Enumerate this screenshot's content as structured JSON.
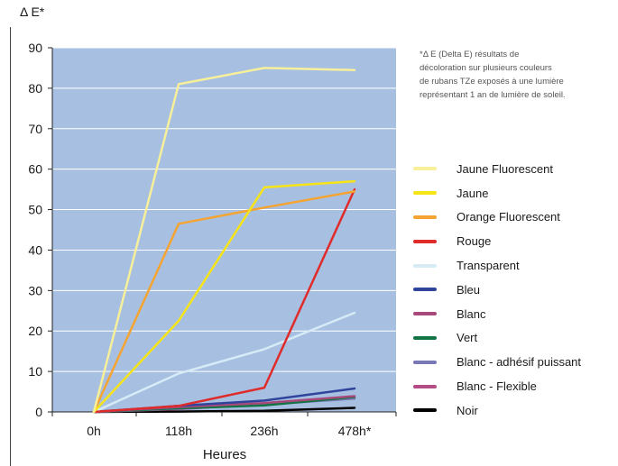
{
  "chart_data": {
    "type": "line",
    "ylabel": "Δ E*",
    "xlabel": "Heures",
    "categories": [
      "0h",
      "118h",
      "236h",
      "478h*"
    ],
    "ylim": [
      0,
      90
    ],
    "yticks": [
      0,
      10,
      20,
      30,
      40,
      50,
      60,
      70,
      80,
      90
    ],
    "plot_background": "#a7c0e2",
    "grid": true,
    "legend_position": "right",
    "footnote_lines": [
      "*Δ E (Delta E) résultats de",
      "décoloration sur plusieurs couleurs",
      "de rubans TZe exposés à une lumière",
      "représentant 1 an de lumière de soleil."
    ],
    "series": [
      {
        "name": "Jaune Fluorescent",
        "color": "#f7ef9a",
        "values": [
          0,
          81,
          85,
          84.5
        ]
      },
      {
        "name": "Jaune",
        "color": "#f7e417",
        "values": [
          0,
          22.5,
          55.5,
          57
        ]
      },
      {
        "name": "Orange Fluorescent",
        "color": "#f5a431",
        "values": [
          0,
          46.5,
          50.5,
          54.5
        ]
      },
      {
        "name": "Rouge",
        "color": "#e02b2b",
        "values": [
          0,
          1.5,
          6,
          55
        ]
      },
      {
        "name": "Transparent",
        "color": "#d6ebf6",
        "values": [
          0,
          9.5,
          15.5,
          24.5
        ]
      },
      {
        "name": "Bleu",
        "color": "#30449c",
        "values": [
          0,
          1.5,
          2.8,
          5.8
        ]
      },
      {
        "name": "Blanc",
        "color": "#a8497c",
        "values": [
          0,
          1.2,
          2.2,
          3.9
        ]
      },
      {
        "name": "Vert",
        "color": "#127345",
        "values": [
          0,
          0.9,
          1.6,
          3.7
        ]
      },
      {
        "name": "Blanc - adhésif puissant",
        "color": "#7a78b4",
        "values": [
          0,
          0.8,
          1.8,
          3.3
        ]
      },
      {
        "name": "Blanc - Flexible",
        "color": "#b64c86",
        "values": [
          0,
          0.7,
          1.9,
          3.5
        ]
      },
      {
        "name": "Noir",
        "color": "#000000",
        "values": [
          0,
          0.1,
          0.3,
          1.0
        ]
      }
    ]
  }
}
